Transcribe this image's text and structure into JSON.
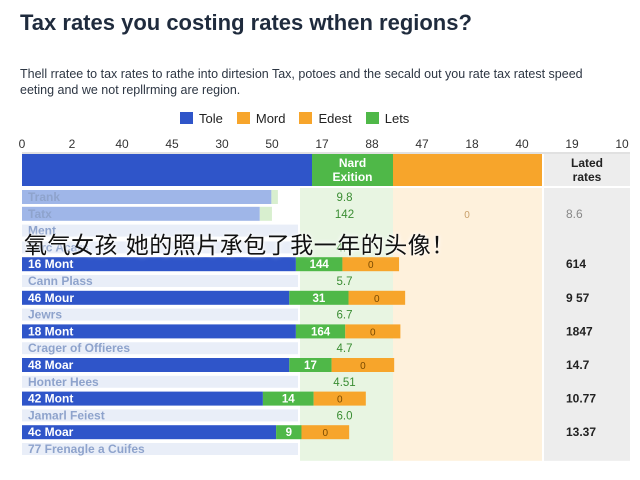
{
  "header": {
    "title": "Tax rates you costing rates wthen regions?",
    "subtitle": "Thell rratee to tax rates to rathe into dirtesion Tax, potoes and the secald out you rate tax ratest speed eeting and we not repllrming are region."
  },
  "overlay_text": "氧气女孩 她的照片承包了我一年的头像！",
  "chart_data": {
    "type": "bar",
    "orientation": "horizontal",
    "stacked": true,
    "x_ticks": [
      "0",
      "2",
      "40",
      "45",
      "30",
      "50",
      "17",
      "88",
      "47",
      "18",
      "40",
      "19",
      "10"
    ],
    "legend": [
      "Tole",
      "Mord",
      "Edest",
      "Lets"
    ],
    "legend_colors": [
      "#2f55c9",
      "#f7a52b",
      "#f7a52b",
      "#4fb848"
    ],
    "column_header_green": "Nard Exition",
    "column_header_right": "Lated rates",
    "colors": {
      "blue": "#2f55c9",
      "green": "#4fb848",
      "orange": "#f7a52b",
      "pale_blue": "#9fb6e8",
      "pale_green": "#d8efcf",
      "pale_orange": "#fde7c4",
      "right_column": "#ededed"
    },
    "rows": [
      {
        "label": "Trank",
        "blue": 0.86,
        "green": 0.08,
        "orange": 0,
        "green_label": "9.8",
        "orange_label": "",
        "right_label": "",
        "emphasis": false
      },
      {
        "label": "Tatx",
        "blue": 0.82,
        "green": 0.15,
        "orange": 0,
        "green_label": "142",
        "orange_label": "0",
        "right_label": "8.6",
        "emphasis": false
      },
      {
        "label": "Ment",
        "blue": 0,
        "green": 0,
        "orange": 0,
        "green_label": "",
        "orange_label": "",
        "right_label": "",
        "emphasis": false
      },
      {
        "label": "Tarc Acars",
        "blue": 0,
        "green": 0,
        "orange": 0,
        "green_label": "4.7",
        "orange_label": "",
        "right_label": "",
        "emphasis": false
      },
      {
        "label": "16 Mont",
        "blue": 0.83,
        "green": 0.33,
        "orange": 0.38,
        "green_label": "144",
        "orange_label": "0",
        "right_label": "614",
        "emphasis": true
      },
      {
        "label": "Cann Plass",
        "blue": 0,
        "green": 0,
        "orange": 0,
        "green_label": "5.7",
        "orange_label": "",
        "right_label": "",
        "emphasis": false
      },
      {
        "label": "46 Mour",
        "blue": 0.81,
        "green": 0.42,
        "orange": 0.38,
        "green_label": "31",
        "orange_label": "0",
        "right_label": "9 57",
        "emphasis": true
      },
      {
        "label": "Jewrs",
        "blue": 0,
        "green": 0,
        "orange": 0,
        "green_label": "6.7",
        "orange_label": "",
        "right_label": "",
        "emphasis": false
      },
      {
        "label": "18 Mont",
        "blue": 0.83,
        "green": 0.35,
        "orange": 0.37,
        "green_label": "164",
        "orange_label": "0",
        "right_label": "1847",
        "emphasis": true
      },
      {
        "label": "Crager of Offieres",
        "blue": 0,
        "green": 0,
        "orange": 0,
        "green_label": "4.7",
        "orange_label": "",
        "right_label": "",
        "emphasis": false
      },
      {
        "label": "48 Moar",
        "blue": 0.81,
        "green": 0.3,
        "orange": 0.42,
        "green_label": "17",
        "orange_label": "0",
        "right_label": "14.7",
        "emphasis": true
      },
      {
        "label": "Honter Hees",
        "blue": 0,
        "green": 0,
        "orange": 0,
        "green_label": "4.51",
        "orange_label": "",
        "right_label": "",
        "emphasis": false
      },
      {
        "label": "42 Mont",
        "blue": 0.73,
        "green": 0.36,
        "orange": 0.35,
        "green_label": "14",
        "orange_label": "0",
        "right_label": "10.77",
        "emphasis": true
      },
      {
        "label": "Jamarl Feiest",
        "blue": 0,
        "green": 0,
        "orange": 0,
        "green_label": "6.0",
        "orange_label": "",
        "right_label": "",
        "emphasis": false
      },
      {
        "label": "4c Moar",
        "blue": 0.77,
        "green": 0.18,
        "orange": 0.32,
        "green_label": "9",
        "orange_label": "0",
        "right_label": "13.37",
        "emphasis": true
      },
      {
        "label": "77 Frenagle a Cuifes",
        "blue": 0,
        "green": 0,
        "orange": 0,
        "green_label": "",
        "orange_label": "",
        "right_label": "",
        "emphasis": false
      }
    ]
  }
}
